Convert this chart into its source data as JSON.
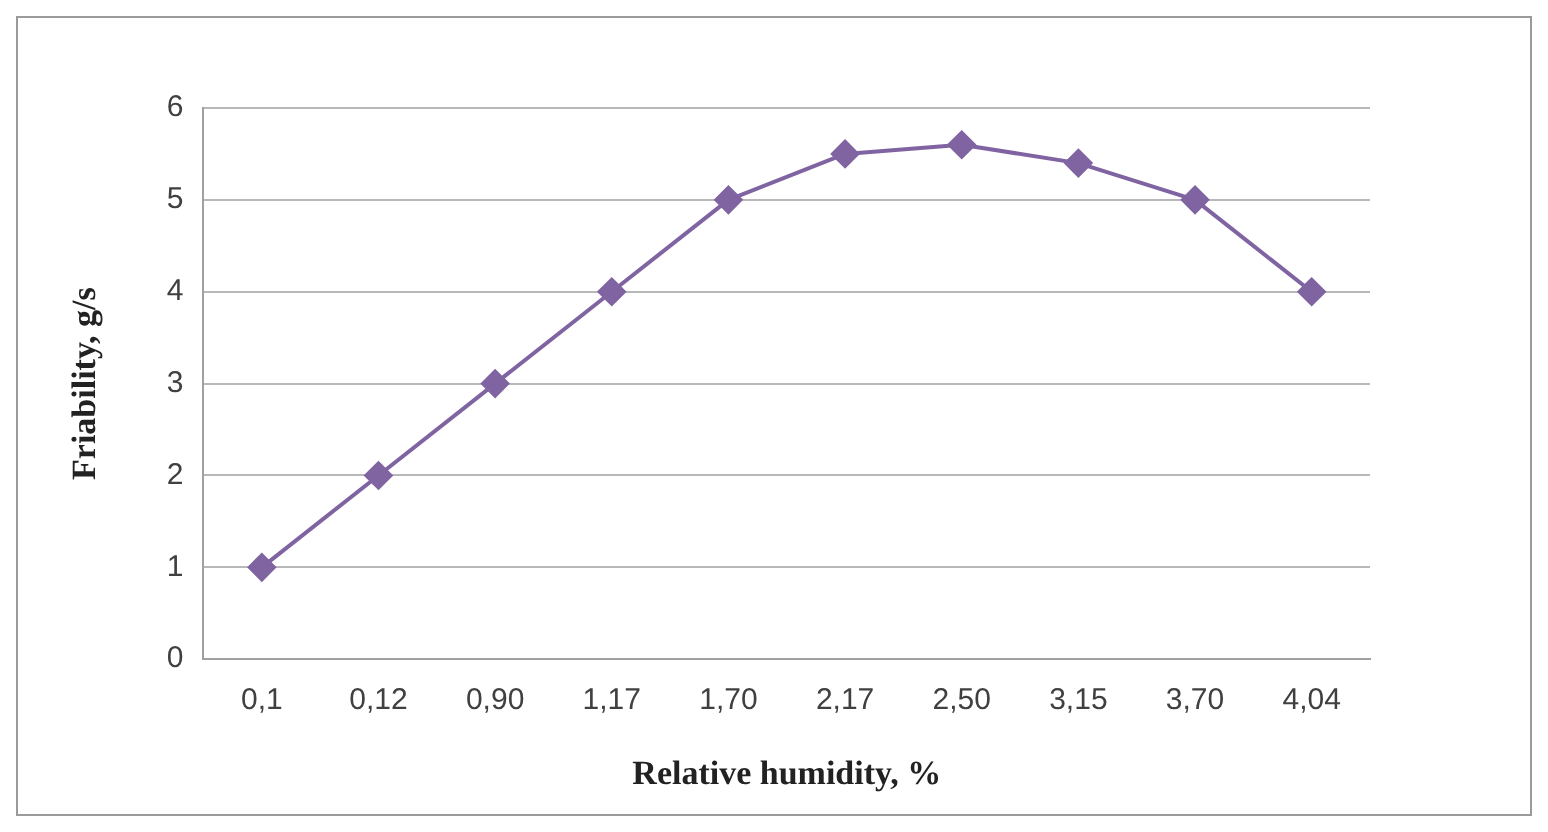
{
  "chart_data": {
    "type": "line",
    "xlabel": "Relative humidity, %",
    "ylabel": "Friability, g/s",
    "categories": [
      "0,1",
      "0,12",
      "0,90",
      "1,17",
      "1,70",
      "2,17",
      "2,50",
      "3,15",
      "3,70",
      "4,04"
    ],
    "series": [
      {
        "color": "#8064a2",
        "values": [
          1,
          2,
          3,
          4,
          5,
          5.5,
          5.6,
          5.4,
          5,
          4
        ]
      }
    ],
    "ylim": [
      0,
      6
    ],
    "yticks": [
      0,
      1,
      2,
      3,
      4,
      5,
      6
    ],
    "grid": "y",
    "marker": "diamond",
    "line_style": "solid",
    "legend": false
  }
}
